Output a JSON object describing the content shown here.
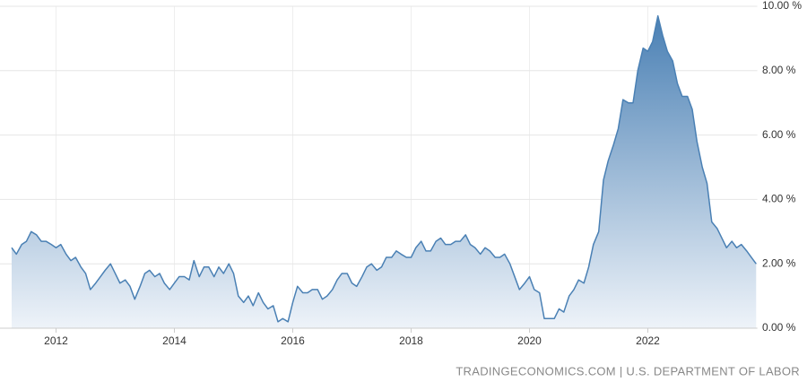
{
  "chart_data": {
    "type": "area",
    "source": "TRADINGECONOMICS.COM | U.S. DEPARTMENT OF LABOR",
    "color": "#4a80b4",
    "grid": true,
    "x": [
      2011.25,
      2011.33,
      2011.42,
      2011.5,
      2011.58,
      2011.67,
      2011.75,
      2011.83,
      2011.92,
      2012,
      2012.08,
      2012.17,
      2012.25,
      2012.33,
      2012.42,
      2012.5,
      2012.58,
      2012.67,
      2012.75,
      2012.83,
      2012.92,
      2013,
      2013.08,
      2013.17,
      2013.25,
      2013.33,
      2013.42,
      2013.5,
      2013.58,
      2013.67,
      2013.75,
      2013.83,
      2013.92,
      2014,
      2014.08,
      2014.17,
      2014.25,
      2014.33,
      2014.42,
      2014.5,
      2014.58,
      2014.67,
      2014.75,
      2014.83,
      2014.92,
      2015,
      2015.08,
      2015.17,
      2015.25,
      2015.33,
      2015.42,
      2015.5,
      2015.58,
      2015.67,
      2015.75,
      2015.83,
      2015.92,
      2016,
      2016.08,
      2016.17,
      2016.25,
      2016.33,
      2016.42,
      2016.5,
      2016.58,
      2016.67,
      2016.75,
      2016.83,
      2016.92,
      2017,
      2017.08,
      2017.17,
      2017.25,
      2017.33,
      2017.42,
      2017.5,
      2017.58,
      2017.67,
      2017.75,
      2017.83,
      2017.92,
      2018,
      2018.08,
      2018.17,
      2018.25,
      2018.33,
      2018.42,
      2018.5,
      2018.58,
      2018.67,
      2018.75,
      2018.83,
      2018.92,
      2019,
      2019.08,
      2019.17,
      2019.25,
      2019.33,
      2019.42,
      2019.5,
      2019.58,
      2019.67,
      2019.75,
      2019.83,
      2019.92,
      2020,
      2020.08,
      2020.17,
      2020.25,
      2020.33,
      2020.42,
      2020.5,
      2020.58,
      2020.67,
      2020.75,
      2020.83,
      2020.92,
      2021,
      2021.08,
      2021.17,
      2021.25,
      2021.33,
      2021.42,
      2021.5,
      2021.58,
      2021.67,
      2021.75,
      2021.83,
      2021.92,
      2022,
      2022.08,
      2022.17,
      2022.25,
      2022.33,
      2022.42,
      2022.5,
      2022.58,
      2022.67,
      2022.75,
      2022.83,
      2022.92,
      2023,
      2023.08,
      2023.17,
      2023.25,
      2023.33,
      2023.42,
      2023.5,
      2023.58,
      2023.67,
      2023.75,
      2023.83
    ],
    "values": [
      2.5,
      2.3,
      2.6,
      2.7,
      3.0,
      2.9,
      2.7,
      2.7,
      2.6,
      2.5,
      2.6,
      2.3,
      2.1,
      2.2,
      1.9,
      1.7,
      1.2,
      1.4,
      1.6,
      1.8,
      2.0,
      1.7,
      1.4,
      1.5,
      1.3,
      0.9,
      1.3,
      1.7,
      1.8,
      1.6,
      1.7,
      1.4,
      1.2,
      1.4,
      1.6,
      1.6,
      1.5,
      2.1,
      1.6,
      1.9,
      1.9,
      1.6,
      1.9,
      1.7,
      2.0,
      1.7,
      1.0,
      0.8,
      1.0,
      0.7,
      1.1,
      0.8,
      0.6,
      0.7,
      0.2,
      0.3,
      0.2,
      0.8,
      1.3,
      1.1,
      1.1,
      1.2,
      1.2,
      0.9,
      1.0,
      1.2,
      1.5,
      1.7,
      1.7,
      1.4,
      1.3,
      1.6,
      1.9,
      2.0,
      1.8,
      1.9,
      2.2,
      2.2,
      2.4,
      2.3,
      2.2,
      2.2,
      2.5,
      2.7,
      2.4,
      2.4,
      2.7,
      2.8,
      2.6,
      2.6,
      2.7,
      2.7,
      2.9,
      2.6,
      2.5,
      2.3,
      2.5,
      2.4,
      2.2,
      2.2,
      2.3,
      2.0,
      1.6,
      1.2,
      1.4,
      1.6,
      1.2,
      1.1,
      0.3,
      0.3,
      0.3,
      0.6,
      0.5,
      1.0,
      1.2,
      1.5,
      1.4,
      1.9,
      2.6,
      3.0,
      4.6,
      5.2,
      5.7,
      6.2,
      7.1,
      7.0,
      7.0,
      8.0,
      8.7,
      8.6,
      8.9,
      9.7,
      9.1,
      8.6,
      8.3,
      7.6,
      7.2,
      7.2,
      6.8,
      5.8,
      5.0,
      4.5,
      3.3,
      3.1,
      2.8,
      2.5,
      2.7,
      2.5,
      2.6,
      2.4,
      2.2,
      2.0
    ],
    "xlim": [
      2011.15,
      2023.85
    ],
    "xticks": [
      2012,
      2014,
      2016,
      2018,
      2020,
      2022
    ],
    "ylim": [
      0,
      10
    ],
    "yticks": [
      {
        "value": 0,
        "label": "0.00 %"
      },
      {
        "value": 2,
        "label": "2.00 %"
      },
      {
        "value": 4,
        "label": "4.00 %"
      },
      {
        "value": 6,
        "label": "6.00 %"
      },
      {
        "value": 8,
        "label": "8.00 %"
      },
      {
        "value": 10,
        "label": "10.00 %"
      }
    ]
  }
}
